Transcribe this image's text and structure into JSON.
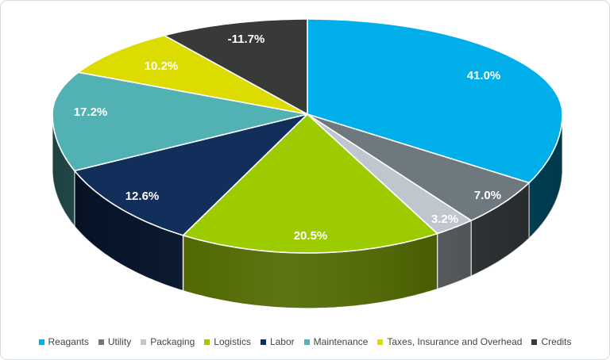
{
  "chart_data": {
    "type": "pie",
    "style": "3d",
    "title": "",
    "legend_position": "bottom",
    "data_label_color": "#FFFFFF",
    "start_angle_deg": 0,
    "direction": "clockwise",
    "note": "slice angular size proportional to absolute value; Credits is negative",
    "categories": [
      "Reagants",
      "Utility",
      "Packaging",
      "Logistics",
      "Labor",
      "Maintenance",
      "Taxes, Insurance and Overhead",
      "Credits"
    ],
    "values": [
      41.0,
      7.0,
      3.2,
      20.5,
      12.6,
      17.2,
      10.2,
      -11.7
    ],
    "labels": [
      "41.0%",
      "7.0%",
      "3.2%",
      "20.5%",
      "12.6%",
      "17.2%",
      "10.2%",
      "-11.7%"
    ],
    "colors": [
      "#00AEE9",
      "#6D797E",
      "#BFC6CD",
      "#9CCB00",
      "#122E5A",
      "#52B1B2",
      "#DCDC00",
      "#383A37"
    ]
  },
  "page": {
    "background": "#FFFFFF",
    "frame_border_color": "#D7DBDD",
    "legend_text_color": "#444444"
  }
}
